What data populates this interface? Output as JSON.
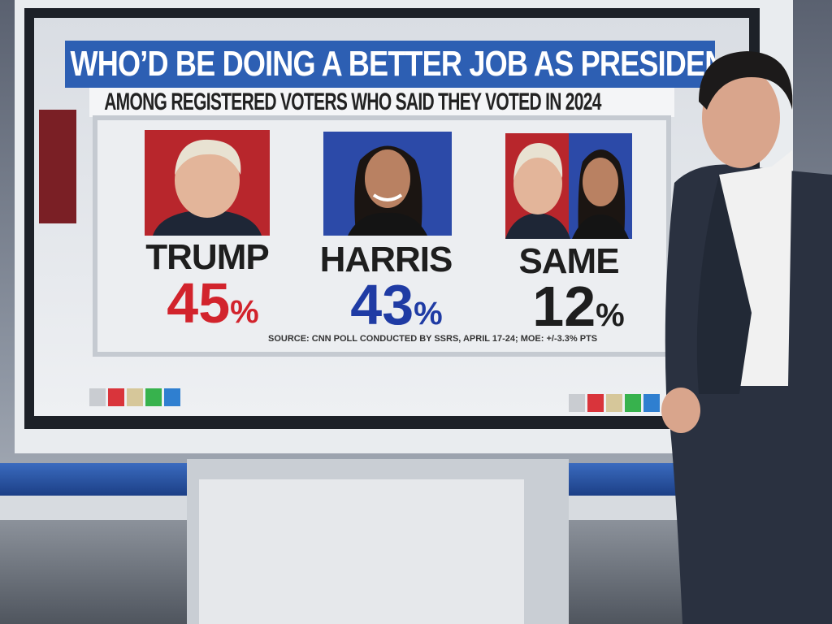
{
  "header": {
    "title": "WHO’D BE DOING A BETTER JOB AS PRESIDENT?",
    "subtitle": "AMONG REGISTERED VOTERS WHO SAID THEY VOTED IN 2024"
  },
  "items": [
    {
      "name": "TRUMP",
      "value": 45,
      "unit": "%"
    },
    {
      "name": "HARRIS",
      "value": 43,
      "unit": "%"
    },
    {
      "name": "SAME",
      "value": 12,
      "unit": "%"
    }
  ],
  "source": "SOURCE: CNN POLL CONDUCTED BY SSRS, APRIL 17-24; MOE: +/-3.3% PTS"
}
